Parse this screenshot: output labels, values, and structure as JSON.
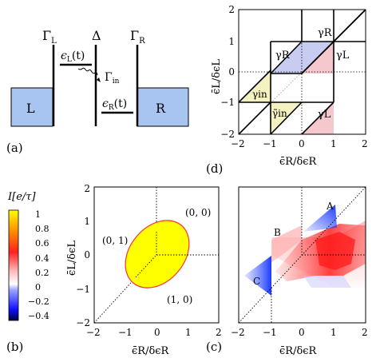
{
  "panel_labels": {
    "a": "(a)",
    "b": "(b)",
    "c": "(c)",
    "d": "(d)"
  },
  "panel_a": {
    "gamma_L": "Γ",
    "gamma_L_sub": "L",
    "delta": "Δ",
    "gamma_R": "Γ",
    "gamma_R_sub": "R",
    "gamma_in": "Γ",
    "gamma_in_sub": "in",
    "eps_L": "ϵ",
    "eps_L_sub": "L",
    "eps_L_arg": "(t)",
    "eps_R": "ϵ",
    "eps_R_sub": "R",
    "eps_R_arg": "(t)",
    "lead_L": "L",
    "lead_R": "R",
    "lead_color": "#a8c4f0"
  },
  "colorbar": {
    "title": "I[e/τ]",
    "ticks": [
      "1",
      "0.8",
      "0.6",
      "0.4",
      "0.2",
      "0",
      "−0.2",
      "−0.4"
    ],
    "values": [
      1,
      0.8,
      0.6,
      0.4,
      0.2,
      0,
      -0.2,
      -0.4
    ],
    "range": [
      -0.5,
      1
    ]
  },
  "axes": {
    "xlabel": "ϵ̄R/δϵR",
    "ylabel": "ϵ̄L/δϵL",
    "ticks": [
      "−2",
      "−1",
      "0",
      "1",
      "2"
    ]
  },
  "panel_b_labels": {
    "r00": "(0, 0)",
    "r01": "(0, 1)",
    "r10": "(1, 0)"
  },
  "panel_c_labels": {
    "A": "A",
    "B": "B",
    "C": "C"
  },
  "panel_d_labels": {
    "gR_top": "γR",
    "gR_box": "γR",
    "gL_right": "γL",
    "gin": "γin",
    "gin_tilde": "γ̃in",
    "gL_low": "γL"
  },
  "chart_data": [
    {
      "type": "other",
      "name": "panel-d-domain-map",
      "x": [
        -2,
        -1,
        0,
        1,
        2
      ],
      "y": [
        -2,
        -1,
        0,
        1,
        2
      ],
      "xlim": [
        -2,
        2
      ],
      "ylim": [
        -2,
        2
      ],
      "regions": [
        "γR",
        "γR",
        "γL",
        "γin",
        "γ̃in",
        "γL"
      ],
      "colors": {
        "γR": "#c8ccf0",
        "γL": "#f4c8cc",
        "γin": "#f4f2c0"
      }
    },
    {
      "type": "other",
      "name": "panel-b-current-map",
      "xlim": [
        -2,
        2
      ],
      "ylim": [
        -2,
        2
      ],
      "regions": [
        "(0, 0)",
        "(0, 1)",
        "(1, 0)"
      ],
      "ellipse_current": 1,
      "ellipse_color": "#ffff00"
    },
    {
      "type": "heatmap",
      "name": "panel-c-current-map",
      "xlim": [
        -2,
        2
      ],
      "ylim": [
        -2,
        2
      ],
      "features": [
        "A",
        "B",
        "C"
      ],
      "value_range": [
        -0.5,
        1
      ]
    }
  ]
}
